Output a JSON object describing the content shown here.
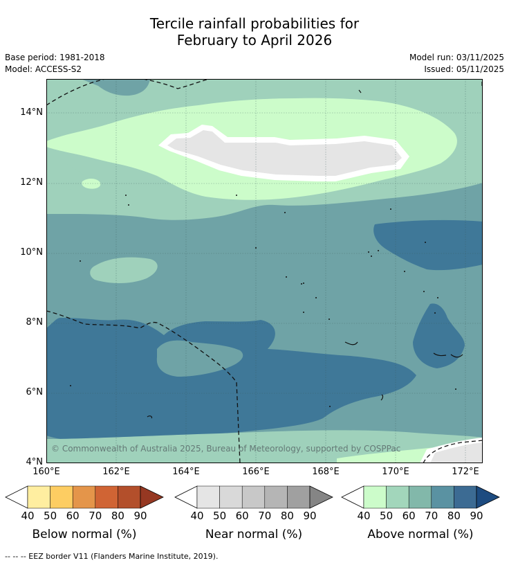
{
  "title": {
    "line1": "Tercile rainfall probabilities for",
    "line2": "February to April 2026"
  },
  "info": {
    "base_period": "Base period: 1981-2018",
    "model": "Model: ACCESS-S2",
    "model_run": "Model run: 03/11/2025",
    "issued": "Issued: 05/11/2025"
  },
  "axes": {
    "lat_labels": [
      "14°N",
      "12°N",
      "10°N",
      "8°N",
      "6°N",
      "4°N"
    ],
    "lon_labels": [
      "160°E",
      "162°E",
      "164°E",
      "166°E",
      "168°E",
      "170°E",
      "172°E"
    ]
  },
  "copyright": "© Commonwealth of Australia 2025, Bureau of Meteorology, supported by COSPPac",
  "legends": {
    "below": {
      "label": "Below normal (%)",
      "ticks": [
        "40",
        "50",
        "60",
        "70",
        "80",
        "90"
      ],
      "colors": [
        "#ffeea0",
        "#fdcd62",
        "#e4954a",
        "#d06434",
        "#b34f2b",
        "#963822"
      ]
    },
    "near": {
      "label": "Near normal (%)",
      "ticks": [
        "40",
        "50",
        "60",
        "70",
        "80",
        "90"
      ],
      "colors": [
        "#e5e5e5",
        "#d9d9d9",
        "#c8c8c8",
        "#b5b5b5",
        "#a0a0a0",
        "#858585"
      ]
    },
    "above": {
      "label": "Above normal (%)",
      "ticks": [
        "40",
        "50",
        "60",
        "70",
        "80",
        "90"
      ],
      "colors": [
        "#ccfcca",
        "#a2d6bb",
        "#82b8aa",
        "#5a92a2",
        "#3c6b93",
        "#1d4b80"
      ]
    }
  },
  "footer": "--  --  -- EEZ border V11 (Flanders Marine Institute, 2019)."
}
